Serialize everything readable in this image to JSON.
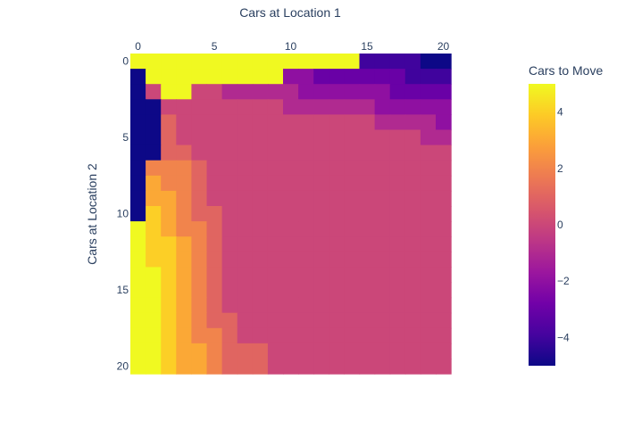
{
  "chart_data": {
    "type": "heatmap",
    "title": "Cars at Location 1",
    "xlabel": "",
    "ylabel": "Cars at Location 2",
    "x_axis_title": "Cars at Location 1",
    "x_axis_side": "top",
    "y_axis_reversed": true,
    "x_ticks": [
      0,
      5,
      10,
      15,
      20
    ],
    "y_ticks": [
      0,
      5,
      10,
      15,
      20
    ],
    "x": [
      0,
      1,
      2,
      3,
      4,
      5,
      6,
      7,
      8,
      9,
      10,
      11,
      12,
      13,
      14,
      15,
      16,
      17,
      18,
      19,
      20
    ],
    "y": [
      0,
      1,
      2,
      3,
      4,
      5,
      6,
      7,
      8,
      9,
      10,
      11,
      12,
      13,
      14,
      15,
      16,
      17,
      18,
      19,
      20
    ],
    "zmin": -5,
    "zmax": 5,
    "colorscale_name": "plasma",
    "colorbar": {
      "title": "Cars to Move",
      "ticks": [
        4,
        2,
        0,
        -2,
        -4
      ],
      "tick_labels": [
        "4",
        "2",
        "0",
        "−2",
        "−4"
      ]
    },
    "z": [
      [
        5,
        5,
        5,
        5,
        5,
        5,
        5,
        5,
        5,
        5,
        5,
        5,
        5,
        5,
        5,
        -4,
        -4,
        -4,
        -4,
        -5,
        -5
      ],
      [
        -5,
        5,
        5,
        5,
        5,
        5,
        5,
        5,
        5,
        5,
        -2,
        -2,
        -3,
        -3,
        -3,
        -3,
        -3,
        -3,
        -4,
        -4,
        -4
      ],
      [
        -5,
        0,
        5,
        5,
        0,
        0,
        -1,
        -1,
        -1,
        -1,
        -1,
        -2,
        -2,
        -2,
        -2,
        -2,
        -2,
        -3,
        -3,
        -3,
        -3
      ],
      [
        -5,
        -5,
        0,
        0,
        0,
        0,
        0,
        0,
        0,
        0,
        -1,
        -1,
        -1,
        -1,
        -1,
        -1,
        -2,
        -2,
        -2,
        -2,
        -2
      ],
      [
        -5,
        -5,
        1,
        0,
        0,
        0,
        0,
        0,
        0,
        0,
        0,
        0,
        0,
        0,
        0,
        0,
        -1,
        -1,
        -1,
        -1,
        -2
      ],
      [
        -5,
        -5,
        1,
        0,
        0,
        0,
        0,
        0,
        0,
        0,
        0,
        0,
        0,
        0,
        0,
        0,
        0,
        0,
        0,
        -1,
        -1
      ],
      [
        -5,
        -5,
        1,
        1,
        0,
        0,
        0,
        0,
        0,
        0,
        0,
        0,
        0,
        0,
        0,
        0,
        0,
        0,
        0,
        0,
        0
      ],
      [
        -5,
        2,
        2,
        2,
        1,
        0,
        0,
        0,
        0,
        0,
        0,
        0,
        0,
        0,
        0,
        0,
        0,
        0,
        0,
        0,
        0
      ],
      [
        -5,
        3,
        2,
        2,
        1,
        0,
        0,
        0,
        0,
        0,
        0,
        0,
        0,
        0,
        0,
        0,
        0,
        0,
        0,
        0,
        0
      ],
      [
        -5,
        3,
        3,
        2,
        1,
        0,
        0,
        0,
        0,
        0,
        0,
        0,
        0,
        0,
        0,
        0,
        0,
        0,
        0,
        0,
        0
      ],
      [
        -5,
        4,
        3,
        2,
        1,
        1,
        0,
        0,
        0,
        0,
        0,
        0,
        0,
        0,
        0,
        0,
        0,
        0,
        0,
        0,
        0
      ],
      [
        5,
        4,
        3,
        2,
        2,
        1,
        0,
        0,
        0,
        0,
        0,
        0,
        0,
        0,
        0,
        0,
        0,
        0,
        0,
        0,
        0
      ],
      [
        5,
        4,
        4,
        3,
        2,
        1,
        0,
        0,
        0,
        0,
        0,
        0,
        0,
        0,
        0,
        0,
        0,
        0,
        0,
        0,
        0
      ],
      [
        5,
        4,
        4,
        3,
        2,
        1,
        0,
        0,
        0,
        0,
        0,
        0,
        0,
        0,
        0,
        0,
        0,
        0,
        0,
        0,
        0
      ],
      [
        5,
        5,
        4,
        3,
        2,
        1,
        0,
        0,
        0,
        0,
        0,
        0,
        0,
        0,
        0,
        0,
        0,
        0,
        0,
        0,
        0
      ],
      [
        5,
        5,
        4,
        3,
        2,
        1,
        0,
        0,
        0,
        0,
        0,
        0,
        0,
        0,
        0,
        0,
        0,
        0,
        0,
        0,
        0
      ],
      [
        5,
        5,
        4,
        3,
        2,
        1,
        0,
        0,
        0,
        0,
        0,
        0,
        0,
        0,
        0,
        0,
        0,
        0,
        0,
        0,
        0
      ],
      [
        5,
        5,
        4,
        3,
        2,
        1,
        1,
        0,
        0,
        0,
        0,
        0,
        0,
        0,
        0,
        0,
        0,
        0,
        0,
        0,
        0
      ],
      [
        5,
        5,
        4,
        3,
        2,
        2,
        1,
        0,
        0,
        0,
        0,
        0,
        0,
        0,
        0,
        0,
        0,
        0,
        0,
        0,
        0
      ],
      [
        5,
        5,
        4,
        3,
        3,
        2,
        1,
        1,
        1,
        0,
        0,
        0,
        0,
        0,
        0,
        0,
        0,
        0,
        0,
        0,
        0
      ],
      [
        5,
        5,
        4,
        3,
        3,
        2,
        1,
        1,
        1,
        0,
        0,
        0,
        0,
        0,
        0,
        0,
        0,
        0,
        0,
        0,
        0
      ]
    ]
  },
  "colors": {
    "text": "#2a3f5f",
    "background": "#ffffff"
  }
}
